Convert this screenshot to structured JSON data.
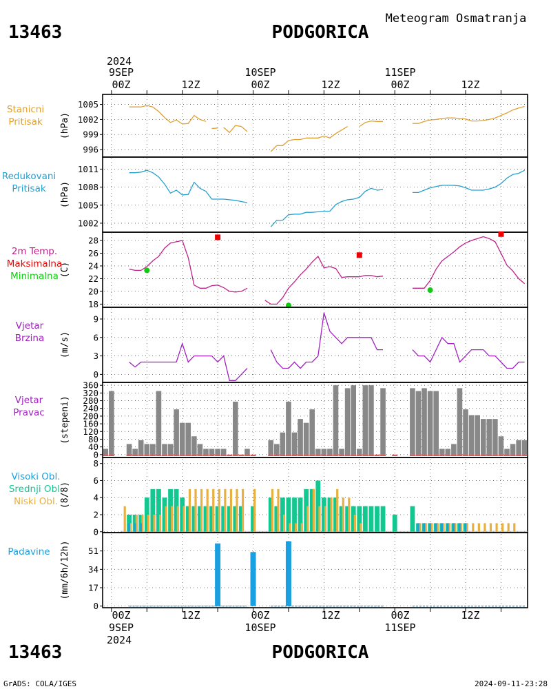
{
  "header": {
    "station_id": "13463",
    "station_name": "PODGORICA",
    "product": "Meteogram Osmatranja"
  },
  "footer": {
    "station_id": "13463",
    "station_name": "PODGORICA",
    "credit": "GrADS: COLA/IGES",
    "timestamp": "2024-09-11-23:28"
  },
  "time_axis": {
    "top": {
      "year": "2024",
      "dates": [
        "9SEP",
        "10SEP",
        "11SEP"
      ],
      "hours": [
        "00Z",
        "12Z",
        "00Z",
        "12Z",
        "00Z",
        "12Z"
      ]
    },
    "bottom": {
      "year": "2024",
      "dates": [
        "9SEP",
        "10SEP",
        "11SEP"
      ],
      "hours": [
        "00Z",
        "12Z",
        "00Z",
        "12Z",
        "00Z",
        "12Z"
      ]
    },
    "hour_range": [
      -1.5,
      70.5
    ]
  },
  "colors": {
    "station_pressure": "#e0a030",
    "reduced_pressure": "#20a0d0",
    "temperature": "#c0208a",
    "tmax": "#ee0000",
    "tmin": "#10cc10",
    "wind": "#a020c0",
    "wind_dir": "#888888",
    "wind_dir_base": "#c05050",
    "cloud_high": "#1aa0e0",
    "cloud_mid": "#12c890",
    "cloud_low": "#e8b040",
    "precip": "#1aa0e0"
  },
  "chart_data": [
    {
      "id": "station_pressure",
      "type": "line",
      "label_lines": [
        "Stanicni",
        "Pritisak"
      ],
      "ylabel": "(hPa)",
      "yticks": [
        996,
        999,
        1002,
        1005
      ],
      "ylim": [
        994.5,
        1007
      ],
      "series": [
        {
          "x": [
            3,
            4,
            5,
            6,
            7,
            8,
            9,
            10,
            11,
            12,
            13,
            14,
            15,
            16
          ],
          "y": [
            1004.5,
            1004.5,
            1004.5,
            1004.8,
            1004.5,
            1003.6,
            1002.4,
            1001.4,
            1001.9,
            1001.1,
            1001.2,
            1002.8,
            1002,
            1001.6
          ]
        },
        {
          "x": [
            17,
            18
          ],
          "y": [
            1000.2,
            1000.3
          ]
        },
        {
          "x": [
            19,
            20,
            21,
            22,
            23
          ],
          "y": [
            1000.4,
            999.4,
            1000.8,
            1000.6,
            999.6
          ]
        },
        {
          "x": [
            27,
            28,
            29,
            30,
            31,
            32,
            33,
            34,
            35,
            36,
            37,
            38,
            39,
            40
          ],
          "y": [
            995.6,
            996.8,
            996.8,
            997.8,
            998,
            998,
            998.3,
            998.3,
            998.3,
            998.7,
            998.3,
            999.2,
            999.9,
            1000.6
          ]
        },
        {
          "x": [
            42,
            43,
            44,
            45,
            46
          ],
          "y": [
            1000.6,
            1001.4,
            1001.7,
            1001.6,
            1001.6
          ]
        },
        {
          "x": [
            51,
            52,
            53,
            54,
            55,
            56,
            57,
            58,
            59,
            60,
            61,
            62,
            63,
            64,
            65,
            66,
            67,
            68,
            69,
            70
          ],
          "y": [
            1001.2,
            1001.2,
            1001.6,
            1001.9,
            1002,
            1002.2,
            1002.3,
            1002.3,
            1002.2,
            1002.1,
            1001.7,
            1001.7,
            1001.8,
            1002,
            1002.3,
            1002.8,
            1003.3,
            1003.9,
            1004.3,
            1004.6
          ]
        }
      ]
    },
    {
      "id": "reduced_pressure",
      "type": "line",
      "label_lines": [
        "Redukovani",
        "Pritisak"
      ],
      "ylabel": "(hPa)",
      "yticks": [
        1002,
        1005,
        1008,
        1011
      ],
      "ylim": [
        1000.5,
        1013
      ],
      "series": [
        {
          "x": [
            3,
            4,
            5,
            6,
            7,
            8,
            9,
            10,
            11,
            12,
            13,
            14,
            15,
            16,
            17,
            18,
            19,
            20,
            21,
            22,
            23
          ],
          "y": [
            1010.4,
            1010.4,
            1010.5,
            1010.8,
            1010.4,
            1009.7,
            1008.5,
            1007,
            1007.5,
            1006.7,
            1006.8,
            1008.8,
            1007.8,
            1007.3,
            1006,
            1006,
            1006,
            1005.9,
            1005.8,
            1005.6,
            1005.4
          ]
        },
        {
          "x": [
            27,
            28,
            29,
            30,
            31,
            32,
            33,
            34,
            35,
            36,
            37,
            38,
            39,
            40,
            41,
            42,
            43,
            44,
            45,
            46
          ],
          "y": [
            1001.4,
            1002.5,
            1002.5,
            1003.4,
            1003.5,
            1003.5,
            1003.8,
            1003.8,
            1003.9,
            1004,
            1004,
            1005.1,
            1005.6,
            1005.9,
            1006,
            1006.3,
            1007.3,
            1007.8,
            1007.5,
            1007.6
          ]
        },
        {
          "x": [
            51,
            52,
            53,
            54,
            55,
            56,
            57,
            58,
            59,
            60,
            61,
            62,
            63,
            64,
            65,
            66,
            67,
            68,
            69,
            70
          ],
          "y": [
            1007.1,
            1007.1,
            1007.5,
            1007.9,
            1008.1,
            1008.3,
            1008.3,
            1008.3,
            1008.2,
            1007.9,
            1007.5,
            1007.5,
            1007.5,
            1007.7,
            1008,
            1008.6,
            1009.5,
            1010.1,
            1010.3,
            1010.8
          ]
        }
      ]
    },
    {
      "id": "temperature",
      "type": "line",
      "label_lines": [
        "2m Temp.",
        "Maksimalna",
        "Minimalna"
      ],
      "ylabel": "(C)",
      "yticks": [
        18,
        20,
        22,
        24,
        26,
        28
      ],
      "ylim": [
        17.5,
        29.3
      ],
      "series": [
        {
          "x": [
            3,
            4,
            5,
            6,
            7,
            8,
            9,
            10,
            11,
            12,
            13,
            14,
            15,
            16,
            17,
            18,
            19,
            20,
            21,
            22,
            23
          ],
          "y": [
            23.5,
            23.3,
            23.3,
            23.9,
            24.8,
            25.5,
            26.8,
            27.6,
            27.8,
            28,
            25.3,
            21,
            20.5,
            20.5,
            20.9,
            21,
            20.6,
            20,
            19.9,
            20,
            20.5
          ]
        },
        {
          "x": [
            26,
            27,
            28,
            29,
            30,
            31,
            32,
            33,
            34,
            35,
            36,
            37,
            38,
            39,
            40,
            41,
            42,
            43,
            44,
            45,
            46
          ],
          "y": [
            18.6,
            18,
            18,
            19,
            20.5,
            21.5,
            22.6,
            23.5,
            24.6,
            25.5,
            23.7,
            23.9,
            23.6,
            22.2,
            22.3,
            22.3,
            22.3,
            22.5,
            22.5,
            22.3,
            22.4
          ]
        },
        {
          "x": [
            51,
            52,
            53,
            54,
            55,
            56,
            57,
            58,
            59,
            60,
            61,
            62,
            63,
            64,
            65,
            66,
            67,
            68,
            69,
            70
          ],
          "y": [
            20.5,
            20.5,
            20.5,
            21.7,
            23.5,
            24.8,
            25.5,
            26.2,
            27,
            27.6,
            28,
            28.3,
            28.6,
            28.3,
            27.8,
            26,
            24.1,
            23.2,
            22,
            21.2
          ]
        }
      ],
      "tmax": [
        {
          "x": 18,
          "y": 28.5
        },
        {
          "x": 42,
          "y": 25.7
        },
        {
          "x": 66,
          "y": 29
        }
      ],
      "tmin": [
        {
          "x": 6,
          "y": 23.3
        },
        {
          "x": 30,
          "y": 17.8
        },
        {
          "x": 54,
          "y": 20.2
        }
      ]
    },
    {
      "id": "wind_speed",
      "type": "line",
      "label_lines": [
        "Vjetar",
        "Brzina"
      ],
      "ylabel": "(m/s)",
      "yticks": [
        0,
        3,
        6,
        9
      ],
      "ylim": [
        -1.3,
        10.9
      ],
      "series": [
        {
          "x": [
            3,
            4,
            5,
            6,
            7,
            8,
            9,
            10,
            11,
            12,
            13,
            14,
            15,
            16,
            17,
            18,
            19,
            20,
            21,
            22,
            23
          ],
          "y": [
            2,
            1.2,
            2,
            2,
            2,
            2,
            2,
            2,
            2,
            5,
            2,
            3,
            3,
            3,
            3,
            2,
            3,
            -1,
            -1,
            0,
            1
          ]
        },
        {
          "x": [
            27,
            28,
            29,
            30,
            31,
            32,
            33,
            34,
            35,
            36,
            37,
            38,
            39,
            40,
            41,
            42,
            43,
            44,
            45,
            46
          ],
          "y": [
            4,
            2,
            1,
            1,
            2,
            1,
            2,
            2,
            3,
            10,
            7,
            6,
            5,
            6,
            6,
            6,
            6,
            6,
            4,
            4
          ]
        },
        {
          "x": [
            51,
            52,
            53,
            54,
            55,
            56,
            57,
            58,
            59,
            60,
            61,
            62,
            63,
            64,
            65,
            66,
            67,
            68,
            69,
            70
          ],
          "y": [
            4,
            3,
            3,
            2,
            4,
            6,
            5,
            5,
            2,
            3,
            4,
            4,
            4,
            3,
            3,
            2,
            1,
            1,
            2,
            2
          ]
        }
      ]
    },
    {
      "id": "wind_direction",
      "type": "bar",
      "label_lines": [
        "Vjetar",
        "Pravac"
      ],
      "ylabel": "(stepeni)",
      "yticks": [
        0,
        40,
        80,
        120,
        160,
        200,
        240,
        280,
        320,
        360
      ],
      "ylim": [
        -15,
        375
      ],
      "x": [
        -1,
        0,
        3,
        4,
        5,
        6,
        7,
        8,
        9,
        10,
        11,
        12,
        13,
        14,
        15,
        16,
        17,
        18,
        19,
        20,
        21,
        22,
        23,
        24,
        27,
        28,
        29,
        30,
        31,
        32,
        33,
        34,
        35,
        36,
        37,
        38,
        39,
        40,
        41,
        42,
        43,
        44,
        45,
        46,
        48,
        51,
        52,
        53,
        54,
        55,
        56,
        57,
        58,
        59,
        60,
        61,
        62,
        63,
        64,
        65,
        66,
        67,
        68,
        69,
        70
      ],
      "values": [
        30,
        330,
        55,
        30,
        75,
        55,
        55,
        330,
        55,
        55,
        235,
        165,
        165,
        95,
        55,
        30,
        30,
        30,
        30,
        0,
        275,
        0,
        30,
        0,
        75,
        55,
        115,
        275,
        115,
        185,
        165,
        235,
        30,
        30,
        30,
        360,
        30,
        345,
        360,
        30,
        360,
        360,
        0,
        345,
        0,
        345,
        330,
        345,
        330,
        330,
        30,
        30,
        55,
        345,
        235,
        205,
        205,
        185,
        185,
        185,
        95,
        30,
        55,
        75,
        75
      ]
    },
    {
      "id": "clouds",
      "type": "bar",
      "label_lines": [
        "Visoki Obl.",
        "Srednji Obl.",
        "Niski Obl."
      ],
      "ylabel": "(8/8)",
      "yticks": [
        0,
        2,
        4,
        6,
        8
      ],
      "ylim": [
        -0.1,
        8.7
      ],
      "x": [
        2,
        3,
        4,
        5,
        6,
        7,
        8,
        9,
        10,
        11,
        12,
        13,
        14,
        15,
        16,
        17,
        18,
        19,
        20,
        21,
        22,
        23,
        24,
        27,
        28,
        29,
        30,
        31,
        32,
        33,
        34,
        35,
        36,
        37,
        38,
        39,
        40,
        41,
        42,
        43,
        44,
        45,
        46,
        48,
        51,
        52,
        53,
        54,
        55,
        56,
        57,
        58,
        59,
        60,
        61,
        62,
        63,
        64,
        65,
        66,
        67,
        68,
        69,
        70
      ],
      "series": [
        {
          "name": "Visoki Obl.",
          "values": [
            0,
            1,
            1,
            1,
            0,
            0,
            0,
            0,
            0,
            0,
            0,
            0,
            0,
            0,
            0,
            0,
            0,
            0,
            0,
            0,
            0,
            0,
            0,
            0,
            0,
            0,
            0,
            0,
            0,
            0,
            0,
            0,
            0,
            0,
            0,
            0,
            0,
            0,
            0,
            0,
            0,
            0,
            0,
            0,
            0,
            1,
            1,
            1,
            1,
            1,
            1,
            1,
            1,
            1,
            0,
            0,
            0,
            0,
            0,
            0,
            0,
            0,
            0,
            0
          ]
        },
        {
          "name": "Srednji Obl.",
          "values": [
            0,
            2,
            2,
            2,
            4,
            5,
            5,
            4,
            5,
            5,
            4,
            3,
            3,
            3,
            3,
            3,
            3,
            3,
            3,
            3,
            3,
            0,
            3,
            4,
            3,
            4,
            4,
            4,
            4,
            5,
            5,
            6,
            4,
            4,
            4,
            3,
            3,
            3,
            3,
            3,
            3,
            3,
            3,
            2,
            3,
            1,
            1,
            1,
            1,
            1,
            1,
            1,
            1,
            1,
            0,
            0,
            0,
            0,
            0,
            0,
            0,
            0,
            0,
            0
          ]
        },
        {
          "name": "Niski Obl.",
          "values": [
            3,
            1,
            2,
            2,
            2,
            2,
            2,
            3,
            3,
            3,
            3,
            5,
            5,
            5,
            5,
            5,
            5,
            5,
            5,
            5,
            5,
            0,
            5,
            5,
            5,
            2,
            1,
            1,
            1,
            3,
            5,
            3,
            3,
            4,
            5,
            4,
            4,
            2,
            1,
            0,
            0,
            0,
            0,
            0,
            0,
            1,
            1,
            1,
            1,
            1,
            1,
            1,
            1,
            1,
            1,
            1,
            1,
            1,
            1,
            1,
            1,
            1,
            0,
            0
          ]
        }
      ]
    },
    {
      "id": "precip",
      "type": "bar",
      "label_lines": [
        "Padavine"
      ],
      "ylabel": "(mm/6h/12h)",
      "yticks": [
        0,
        17,
        34,
        51
      ],
      "ylim": [
        -1.5,
        68
      ],
      "x": [
        18,
        24,
        30
      ],
      "values": [
        58,
        50,
        60
      ]
    }
  ]
}
